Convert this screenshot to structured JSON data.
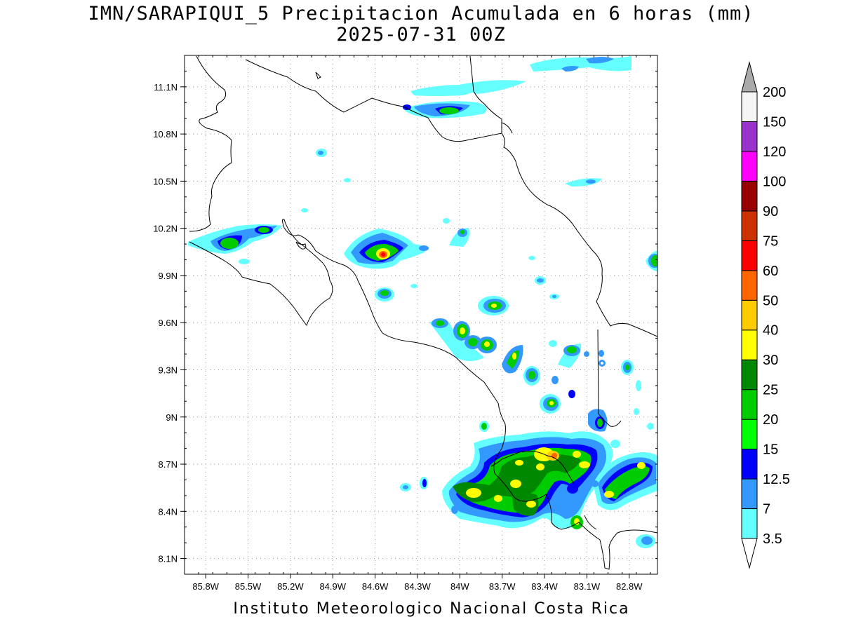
{
  "header": {
    "title": "IMN/SARAPIQUI_5 Precipitacion Acumulada en 6 horas (mm)",
    "subtitle": "2025-07-31 00Z"
  },
  "footer": {
    "credit": "Instituto Meteorologico Nacional Costa Rica"
  },
  "map": {
    "lon_range": [
      -85.95,
      -82.6
    ],
    "lat_range": [
      8.0,
      11.3
    ],
    "lat_ticks": [
      "11.1N",
      "10.8N",
      "10.5N",
      "10.2N",
      "9.9N",
      "9.6N",
      "9.3N",
      "9N",
      "8.7N",
      "8.4N",
      "8.1N"
    ],
    "lon_ticks": [
      "85.8W",
      "85.5W",
      "85.2W",
      "84.9W",
      "84.6W",
      "84.3W",
      "84W",
      "83.7W",
      "83.4W",
      "83.1W",
      "82.8W"
    ],
    "grid": true
  },
  "colorbar": {
    "levels": [
      {
        "label": "3.5",
        "color": "#66ffff"
      },
      {
        "label": "7",
        "color": "#3399ff"
      },
      {
        "label": "12.5",
        "color": "#0000ff"
      },
      {
        "label": "15",
        "color": "#00ff00"
      },
      {
        "label": "20",
        "color": "#00cc00"
      },
      {
        "label": "25",
        "color": "#008800"
      },
      {
        "label": "30",
        "color": "#ffff00"
      },
      {
        "label": "40",
        "color": "#ffcc00"
      },
      {
        "label": "50",
        "color": "#ff6600"
      },
      {
        "label": "60",
        "color": "#ff0000"
      },
      {
        "label": "75",
        "color": "#cc3300"
      },
      {
        "label": "90",
        "color": "#990000"
      },
      {
        "label": "100",
        "color": "#ff00ff"
      },
      {
        "label": "120",
        "color": "#9933cc"
      },
      {
        "label": "150",
        "color": "#f5f5f5"
      },
      {
        "label": "200",
        "color": "#aaaaaa"
      }
    ]
  }
}
